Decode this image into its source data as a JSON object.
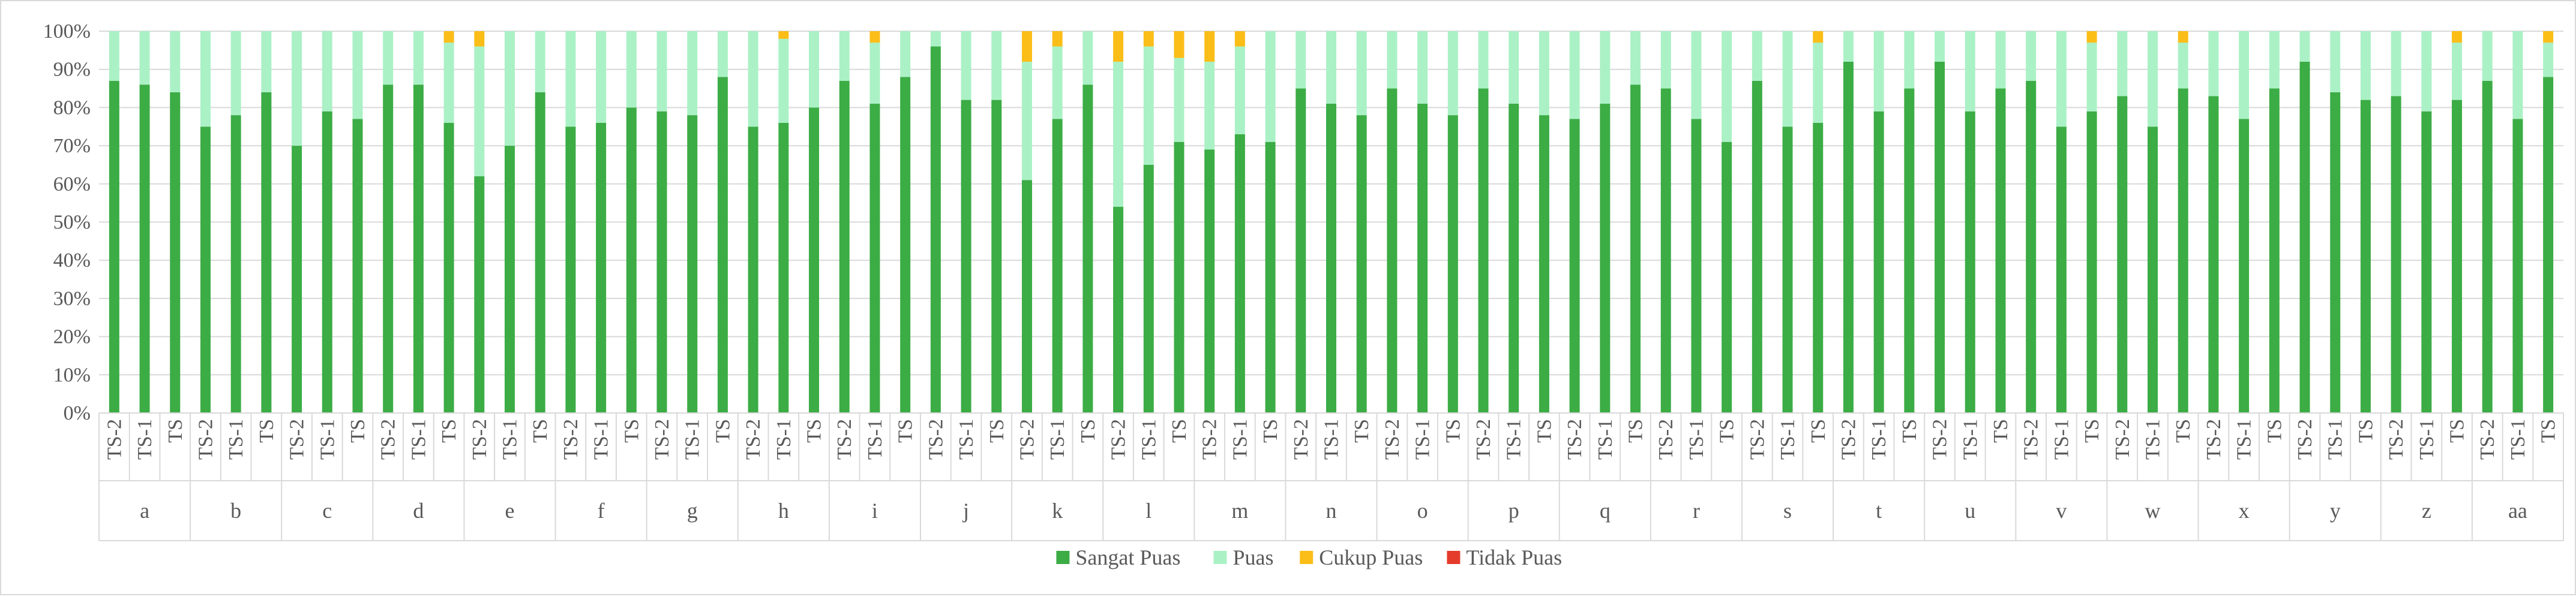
{
  "chart_data": {
    "type": "bar",
    "stacked": true,
    "percent_stacked": true,
    "groups": [
      "a",
      "b",
      "c",
      "d",
      "e",
      "f",
      "g",
      "h",
      "i",
      "j",
      "k",
      "l",
      "m",
      "n",
      "o",
      "p",
      "q",
      "r",
      "s",
      "t",
      "u",
      "v",
      "w",
      "x",
      "y",
      "z",
      "aa"
    ],
    "subcategories": [
      "TS-2",
      "TS-1",
      "TS"
    ],
    "yticks": [
      "0%",
      "10%",
      "20%",
      "30%",
      "40%",
      "50%",
      "60%",
      "70%",
      "80%",
      "90%",
      "100%"
    ],
    "ylim": [
      0,
      100
    ],
    "grid": true,
    "legend_position": "bottom",
    "series": [
      {
        "name": "Sangat Puas",
        "color": "#3cac45",
        "values": [
          87,
          86,
          84,
          75,
          78,
          84,
          70,
          79,
          77,
          86,
          86,
          76,
          62,
          70,
          84,
          75,
          76,
          80,
          79,
          78,
          88,
          75,
          76,
          80,
          87,
          81,
          88,
          96,
          82,
          82,
          61,
          77,
          86,
          54,
          65,
          71,
          69,
          73,
          71,
          85,
          81,
          78,
          85,
          81,
          78,
          85,
          81,
          78,
          77,
          81,
          86,
          85,
          77,
          71,
          87,
          75,
          76,
          92,
          79,
          85,
          92,
          79,
          85,
          87,
          75,
          79,
          83,
          75,
          85,
          83,
          77,
          85,
          92,
          84,
          82,
          83,
          79,
          82,
          87,
          77,
          88
        ]
      },
      {
        "name": "Puas",
        "color": "#abf1c6",
        "values": [
          13,
          14,
          16,
          25,
          22,
          16,
          30,
          21,
          23,
          14,
          14,
          21,
          34,
          30,
          16,
          25,
          24,
          20,
          21,
          22,
          12,
          25,
          22,
          20,
          13,
          16,
          12,
          4,
          18,
          18,
          31,
          19,
          14,
          38,
          31,
          22,
          23,
          23,
          29,
          15,
          19,
          22,
          15,
          19,
          22,
          15,
          19,
          22,
          23,
          19,
          14,
          15,
          23,
          29,
          13,
          25,
          21,
          8,
          21,
          15,
          8,
          21,
          15,
          13,
          25,
          18,
          17,
          25,
          12,
          17,
          23,
          15,
          8,
          16,
          18,
          17,
          21,
          15,
          13,
          23,
          9
        ]
      },
      {
        "name": "Cukup Puas",
        "color": "#fbbd18",
        "values": [
          0,
          0,
          0,
          0,
          0,
          0,
          0,
          0,
          0,
          0,
          0,
          3,
          4,
          0,
          0,
          0,
          0,
          0,
          0,
          0,
          0,
          0,
          2,
          0,
          0,
          3,
          0,
          0,
          0,
          0,
          8,
          4,
          0,
          8,
          4,
          7,
          8,
          4,
          0,
          0,
          0,
          0,
          0,
          0,
          0,
          0,
          0,
          0,
          0,
          0,
          0,
          0,
          0,
          0,
          0,
          0,
          3,
          0,
          0,
          0,
          0,
          0,
          0,
          0,
          0,
          3,
          0,
          0,
          3,
          0,
          0,
          0,
          0,
          0,
          0,
          0,
          0,
          3,
          0,
          0,
          3
        ]
      },
      {
        "name": "Tidak Puas",
        "color": "#e43c2c",
        "values": [
          0,
          0,
          0,
          0,
          0,
          0,
          0,
          0,
          0,
          0,
          0,
          0,
          0,
          0,
          0,
          0,
          0,
          0,
          0,
          0,
          0,
          0,
          0,
          0,
          0,
          0,
          0,
          0,
          0,
          0,
          0,
          0,
          0,
          0,
          0,
          0,
          0,
          0,
          0,
          0,
          0,
          0,
          0,
          0,
          0,
          0,
          0,
          0,
          0,
          0,
          0,
          0,
          0,
          0,
          0,
          0,
          0,
          0,
          0,
          0,
          0,
          0,
          0,
          0,
          0,
          0,
          0,
          0,
          0,
          0,
          0,
          0,
          0,
          0,
          0,
          0,
          0,
          0,
          0,
          0,
          0
        ]
      }
    ]
  }
}
